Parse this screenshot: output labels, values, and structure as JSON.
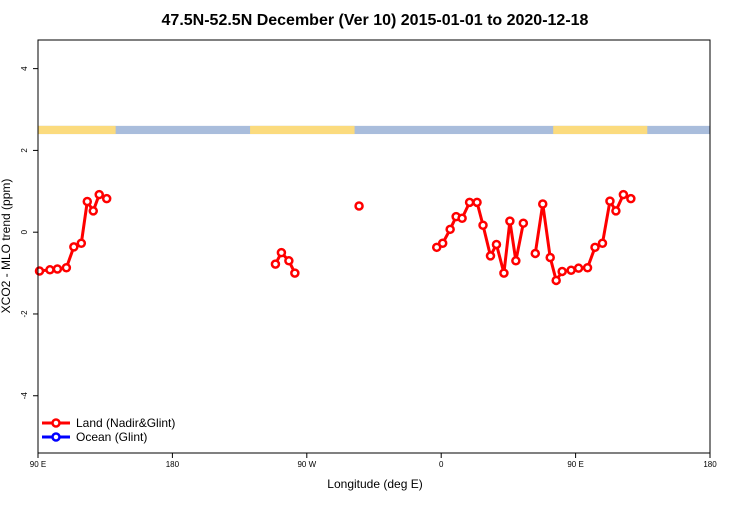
{
  "chart_data": {
    "type": "line",
    "title": "47.5N-52.5N December (Ver 10)   2015-01-01 to 2020-12-18",
    "xlabel": "Longitude (deg E)",
    "ylabel": "XCO2 - MLO trend (ppm)",
    "x_ticks": [
      {
        "value": 90,
        "label": "90 E"
      },
      {
        "value": 180,
        "label": "180"
      },
      {
        "value": 270,
        "label": "90 W"
      },
      {
        "value": 360,
        "label": "0"
      },
      {
        "value": 450,
        "label": "90 E"
      },
      {
        "value": 540,
        "label": "180"
      }
    ],
    "y_ticks": [
      {
        "value": -4,
        "label": "-4"
      },
      {
        "value": -2,
        "label": "-2"
      },
      {
        "value": 0,
        "label": "0"
      },
      {
        "value": 2,
        "label": "2"
      },
      {
        "value": 4,
        "label": "4"
      }
    ],
    "xlim": [
      90,
      540
    ],
    "ylim": [
      -5.4,
      4.7
    ],
    "grid": false,
    "legend_position": "bottom-left",
    "surface_strip": {
      "y_range": [
        2.4,
        2.6
      ],
      "land_color": "#fbdb7e",
      "ocean_color": "#a9bddc",
      "land_intervals": [
        [
          90,
          142
        ],
        [
          232,
          302
        ],
        [
          435,
          498
        ]
      ]
    },
    "series": [
      {
        "name": "Land (Nadir&Glint)",
        "color": "#ff0000",
        "segments": [
          [
            [
              91,
              -0.95
            ],
            [
              98,
              -0.92
            ],
            [
              103,
              -0.9
            ],
            [
              109,
              -0.87
            ],
            [
              114,
              -0.36
            ],
            [
              119,
              -0.27
            ],
            [
              123,
              0.75
            ],
            [
              127,
              0.52
            ],
            [
              131,
              0.92
            ],
            [
              136,
              0.82
            ]
          ],
          [
            [
              249,
              -0.78
            ],
            [
              253,
              -0.5
            ],
            [
              258,
              -0.7
            ],
            [
              262,
              -1.0
            ]
          ],
          [
            [
              305,
              0.64
            ]
          ],
          [
            [
              357,
              -0.37
            ],
            [
              361,
              -0.27
            ],
            [
              366,
              0.07
            ],
            [
              370,
              0.38
            ],
            [
              374,
              0.34
            ],
            [
              379,
              0.73
            ],
            [
              384,
              0.73
            ],
            [
              388,
              0.17
            ],
            [
              393,
              -0.58
            ],
            [
              397,
              -0.3
            ],
            [
              402,
              -1.0
            ],
            [
              406,
              0.27
            ],
            [
              410,
              -0.7
            ],
            [
              415,
              0.22
            ]
          ],
          [
            [
              423,
              -0.52
            ],
            [
              428,
              0.69
            ],
            [
              433,
              -0.62
            ],
            [
              437,
              -1.18
            ],
            [
              441,
              -0.96
            ],
            [
              447,
              -0.93
            ],
            [
              452,
              -0.88
            ],
            [
              458,
              -0.87
            ],
            [
              463,
              -0.37
            ],
            [
              468,
              -0.27
            ],
            [
              473,
              0.76
            ],
            [
              477,
              0.52
            ],
            [
              482,
              0.92
            ],
            [
              487,
              0.82
            ]
          ]
        ]
      },
      {
        "name": "Ocean (Glint)",
        "color": "#0000ff",
        "segments": []
      }
    ]
  }
}
